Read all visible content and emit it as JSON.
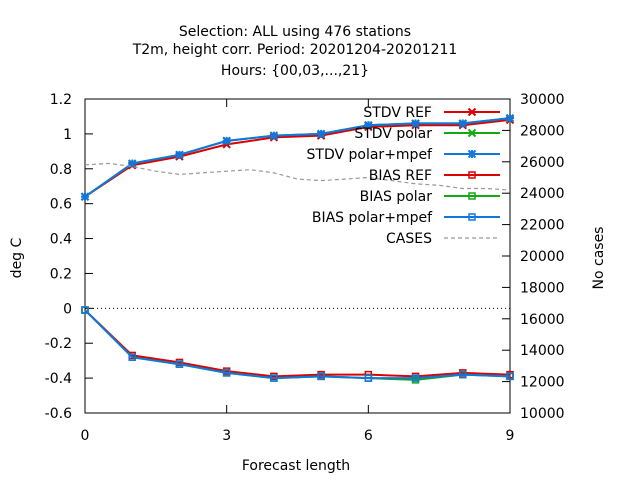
{
  "chart_data": {
    "type": "line",
    "title_lines": [
      "Selection: ALL using   476 stations",
      "T2m, height corr.   Period: 20201204-20201211",
      "Hours: {00,03,...,21}"
    ],
    "xlabel": "Forecast length",
    "ylabel": "deg C",
    "y2label": "No cases",
    "xlim": [
      0,
      9
    ],
    "ylim": [
      -0.6,
      1.2
    ],
    "y2lim": [
      10000,
      30000
    ],
    "x_ticks": [
      "0",
      "3",
      "6",
      "9"
    ],
    "x_tick_values": [
      0,
      3,
      6,
      9
    ],
    "y_ticks": [
      "-0.6",
      "-0.4",
      "-0.2",
      "0",
      "0.2",
      "0.4",
      "0.6",
      "0.8",
      "1",
      "1.2"
    ],
    "y_tick_values": [
      -0.6,
      -0.4,
      -0.2,
      0,
      0.2,
      0.4,
      0.6,
      0.8,
      1,
      1.2
    ],
    "y2_ticks": [
      "10000",
      "12000",
      "14000",
      "16000",
      "18000",
      "20000",
      "22000",
      "24000",
      "26000",
      "28000",
      "30000"
    ],
    "y2_tick_values": [
      10000,
      12000,
      14000,
      16000,
      18000,
      20000,
      22000,
      24000,
      26000,
      28000,
      30000
    ],
    "x": [
      0,
      1,
      2,
      3,
      4,
      5,
      6,
      7,
      8,
      9
    ],
    "legend_position": "top-right",
    "grid": false,
    "series": [
      {
        "name": "STDV REF",
        "color": "#dd0000",
        "marker": "x",
        "axis": "y1",
        "values": [
          0.64,
          0.82,
          0.87,
          0.94,
          0.98,
          0.99,
          1.04,
          1.05,
          1.05,
          1.08
        ]
      },
      {
        "name": "STDV polar",
        "color": "#11aa11",
        "marker": "x",
        "axis": "y1",
        "values": [
          0.64,
          0.83,
          0.88,
          0.96,
          0.99,
          1.0,
          1.05,
          1.06,
          1.06,
          1.09
        ]
      },
      {
        "name": "STDV polar+mpef",
        "color": "#1177dd",
        "marker": "star",
        "axis": "y1",
        "values": [
          0.64,
          0.83,
          0.88,
          0.96,
          0.99,
          1.0,
          1.05,
          1.06,
          1.06,
          1.09
        ]
      },
      {
        "name": "BIAS REF",
        "color": "#dd0000",
        "marker": "square",
        "axis": "y1",
        "values": [
          -0.01,
          -0.27,
          -0.31,
          -0.36,
          -0.39,
          -0.38,
          -0.38,
          -0.39,
          -0.37,
          -0.38
        ]
      },
      {
        "name": "BIAS polar",
        "color": "#11aa11",
        "marker": "square",
        "axis": "y1",
        "values": [
          -0.01,
          -0.28,
          -0.32,
          -0.37,
          -0.4,
          -0.39,
          -0.4,
          -0.41,
          -0.38,
          -0.39
        ]
      },
      {
        "name": "BIAS polar+mpef",
        "color": "#1177dd",
        "marker": "square",
        "axis": "y1",
        "values": [
          -0.01,
          -0.28,
          -0.32,
          -0.37,
          -0.4,
          -0.39,
          -0.4,
          -0.4,
          -0.38,
          -0.39
        ]
      },
      {
        "name": "CASES",
        "color": "#999999",
        "marker": "none",
        "dashed": true,
        "axis": "y2",
        "x": [
          0,
          0.5,
          1,
          1.5,
          2,
          2.5,
          3,
          3.5,
          4,
          4.5,
          5,
          5.5,
          6,
          6.5,
          7,
          7.5,
          8,
          8.5,
          9
        ],
        "values": [
          25800,
          25900,
          25700,
          25400,
          25200,
          25300,
          25400,
          25500,
          25300,
          24900,
          24800,
          24900,
          25000,
          24800,
          24600,
          24500,
          24300,
          24300,
          24200
        ]
      }
    ]
  }
}
